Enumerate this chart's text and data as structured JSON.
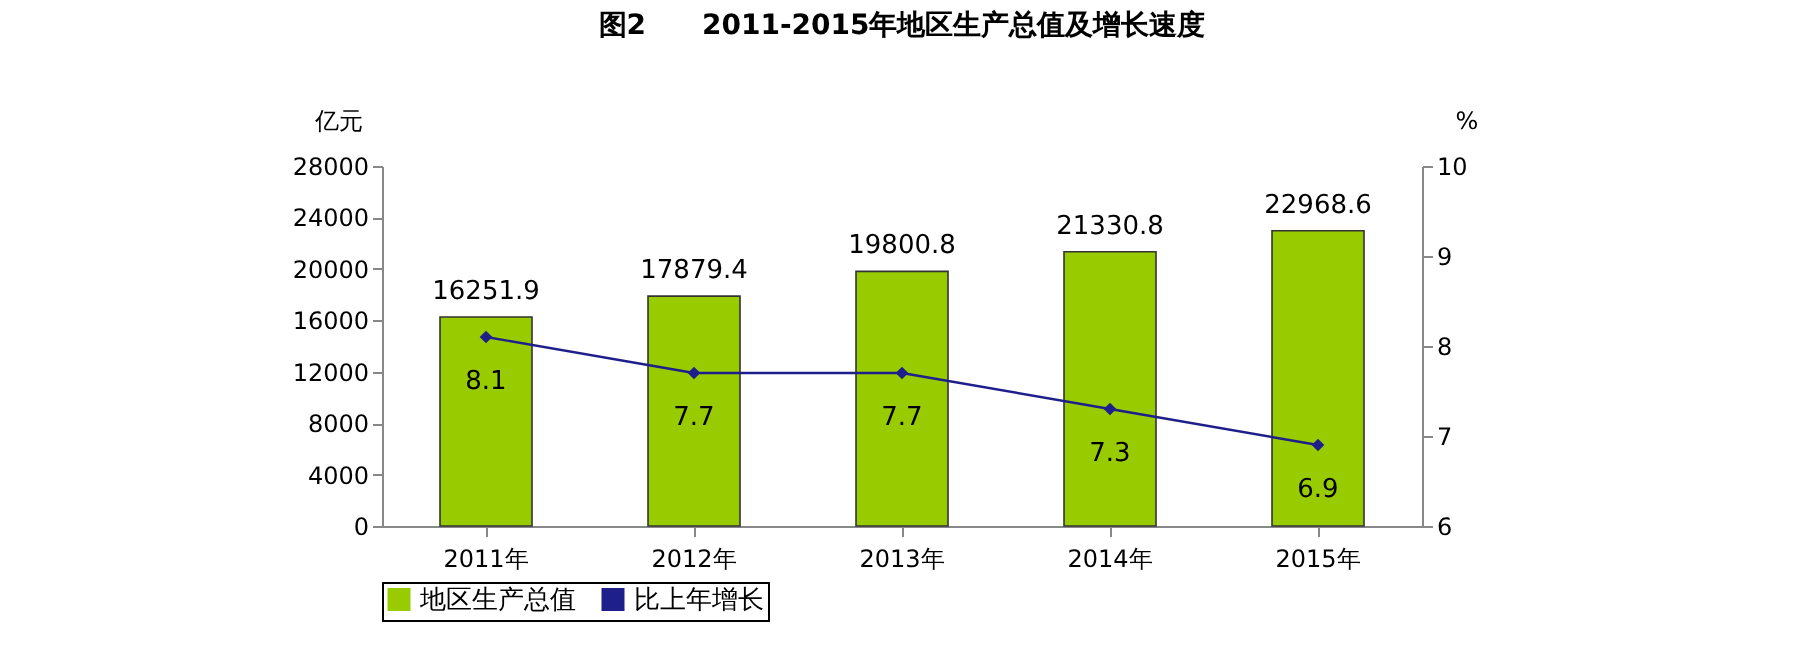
{
  "chart_data": {
    "type": "bar",
    "title": "图2　　2011-2015年地区生产总值及增长速度",
    "categories": [
      "2011年",
      "2012年",
      "2013年",
      "2014年",
      "2015年"
    ],
    "series": [
      {
        "name": "地区生产总值",
        "color": "#99cc00",
        "values": [
          16251.9,
          17879.4,
          19800.8,
          21330.8,
          22968.6
        ]
      },
      {
        "name": "比上年增长",
        "type": "line",
        "axis": "y2",
        "color": "#1f1f8c",
        "values": [
          8.1,
          7.7,
          7.7,
          7.3,
          6.9
        ]
      }
    ],
    "ylabel": "亿元",
    "y2label": "%",
    "ylim": [
      0,
      28000
    ],
    "yticks": [
      0,
      4000,
      8000,
      12000,
      16000,
      20000,
      24000,
      28000
    ],
    "y2lim": [
      6,
      10
    ],
    "y2ticks": [
      6,
      7,
      8,
      9,
      10
    ],
    "data_labels": true,
    "marker": "diamond",
    "legend": "bottom"
  }
}
